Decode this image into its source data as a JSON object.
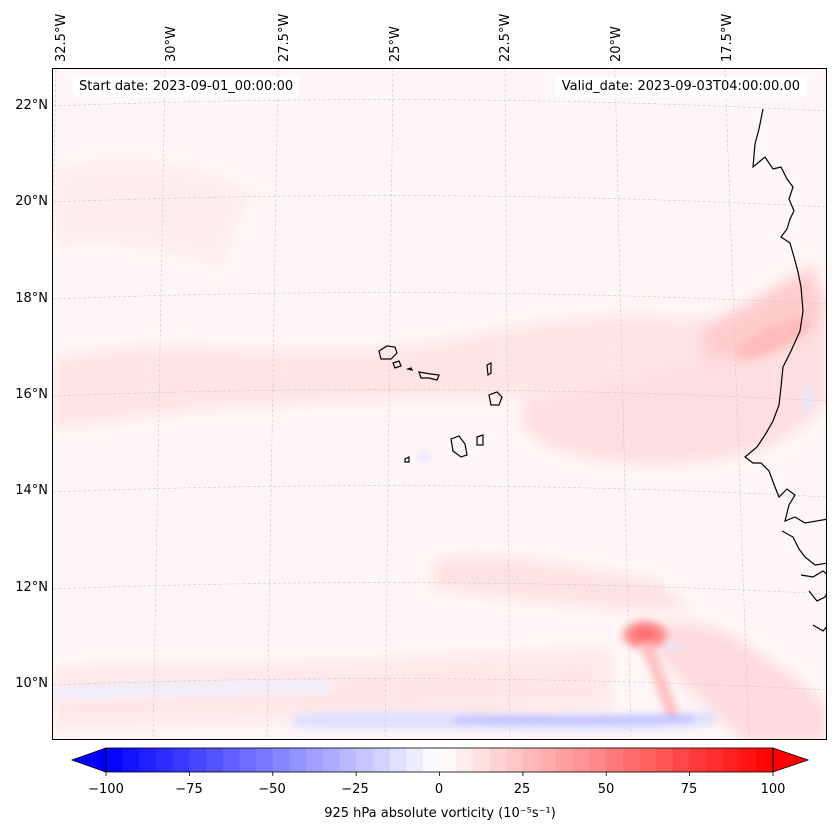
{
  "map": {
    "region": "Eastern tropical North Atlantic, Cape Verde Islands and West African coast",
    "start_date": "Start date: 2023-09-01_00:00:00",
    "valid_date": "Valid_date: 2023-09-03T04:00:00.00",
    "lon_labels": [
      "32.5°W",
      "30°W",
      "27.5°W",
      "25°W",
      "22.5°W",
      "20°W",
      "17.5°W"
    ],
    "lat_labels": [
      "22°N",
      "20°N",
      "18°N",
      "16°N",
      "14°N",
      "12°N",
      "10°N"
    ],
    "colors": {
      "coastline": "#000000",
      "gridline": "#c8c8c8",
      "background": "#fff9f9"
    }
  },
  "colorbar": {
    "label": "925 hPa absolute vorticity (10⁻⁵s⁻¹)",
    "tick_labels": [
      "−100",
      "−75",
      "−50",
      "−25",
      "0",
      "25",
      "50",
      "75",
      "100"
    ],
    "min": -100,
    "max": 100,
    "levels": 41,
    "colormap": "bwr",
    "colors": {
      "negative": "#0000ff",
      "zero": "#ffffff",
      "positive": "#ff0000"
    }
  }
}
